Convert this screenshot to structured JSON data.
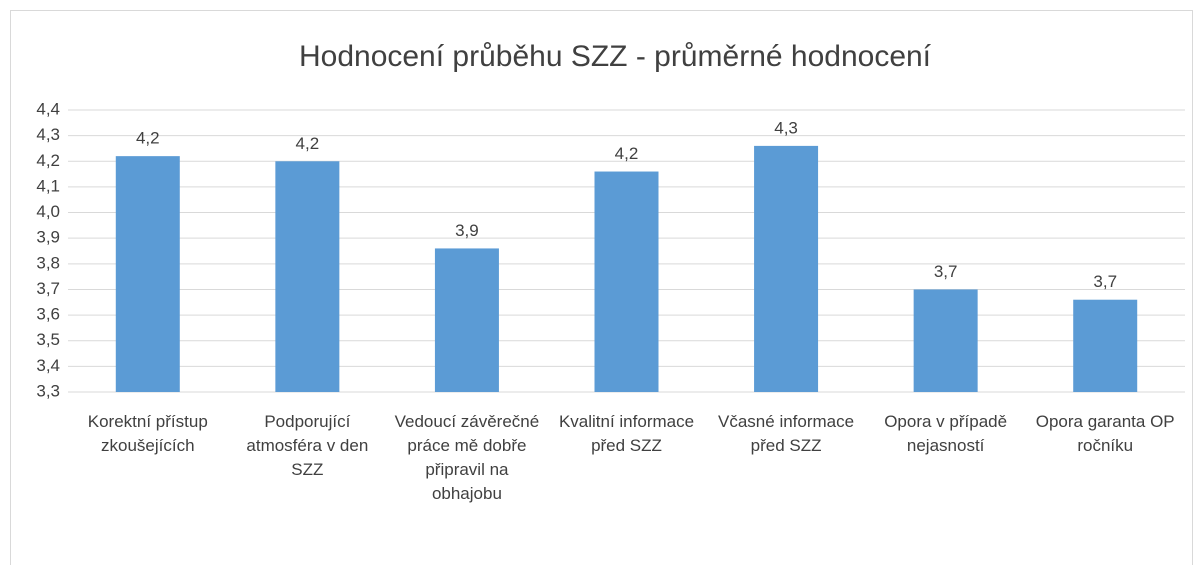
{
  "chart_data": {
    "type": "bar",
    "title": "Hodnocení průběhu SZZ - průměrné hodnocení",
    "categories": [
      "Korektní přístup zkoušejících",
      "Podporující atmosféra v den SZZ",
      "Vedoucí závěrečné práce mě dobře připravil na obhajobu",
      "Kvalitní informace před SZZ",
      "Včasné informace před SZZ",
      "Opora v případě nejasností",
      "Opora garanta OP ročníku"
    ],
    "values": [
      4.22,
      4.2,
      3.86,
      4.16,
      4.26,
      3.7,
      3.66
    ],
    "value_labels": [
      "4,2",
      "4,2",
      "3,9",
      "4,2",
      "4,3",
      "3,7",
      "3,7"
    ],
    "color": "#5b9bd5",
    "ylim": [
      3.3,
      4.4
    ],
    "yticks": [
      {
        "value": 3.3,
        "label": "3,3"
      },
      {
        "value": 3.4,
        "label": "3,4"
      },
      {
        "value": 3.5,
        "label": "3,5"
      },
      {
        "value": 3.6,
        "label": "3,6"
      },
      {
        "value": 3.7,
        "label": "3,7"
      },
      {
        "value": 3.8,
        "label": "3,8"
      },
      {
        "value": 3.9,
        "label": "3,9"
      },
      {
        "value": 4.0,
        "label": "4,0"
      },
      {
        "value": 4.1,
        "label": "4,1"
      },
      {
        "value": 4.2,
        "label": "4,2"
      },
      {
        "value": 4.3,
        "label": "4,3"
      },
      {
        "value": 4.4,
        "label": "4,4"
      }
    ],
    "grid": true
  }
}
